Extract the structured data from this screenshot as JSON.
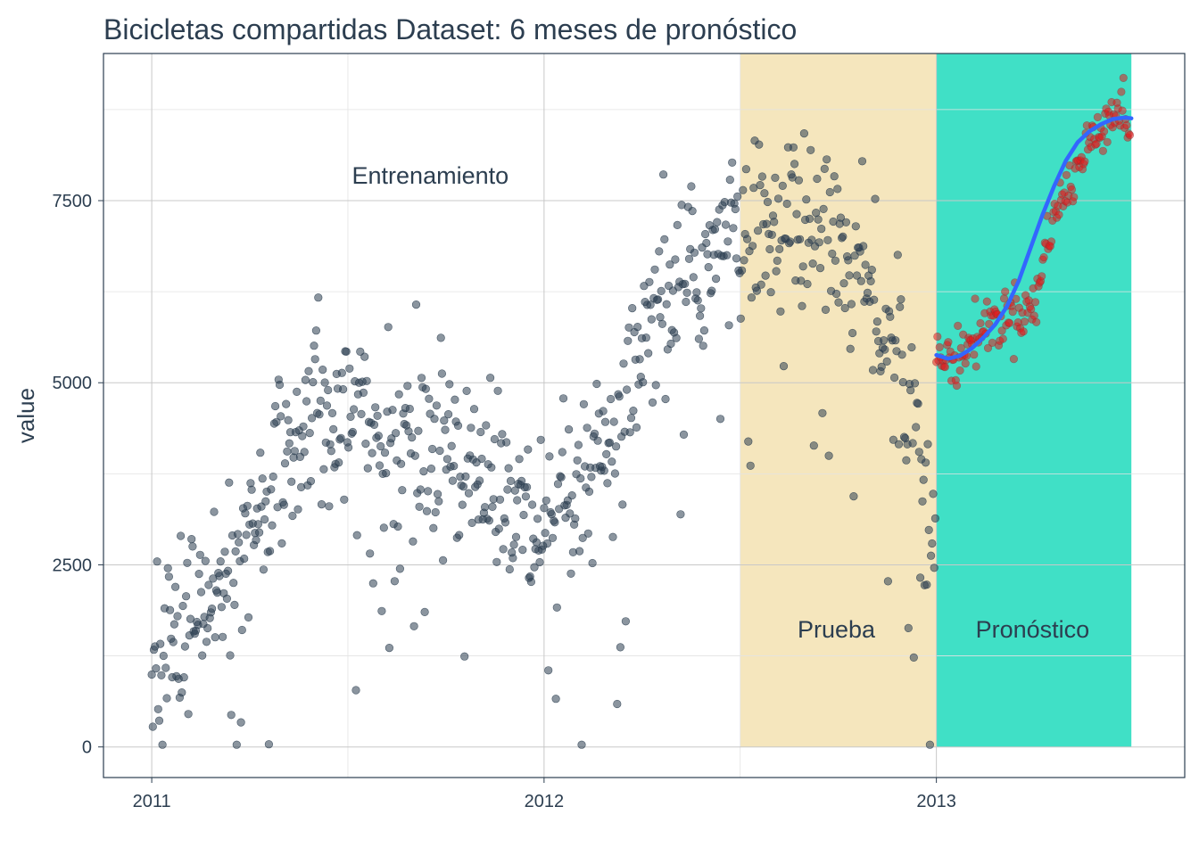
{
  "chart_data": {
    "type": "scatter",
    "title": "Bicicletas compartidas Dataset: 6 meses de pronóstico",
    "xlabel": "",
    "ylabel": "value",
    "xlim": [
      2010.877,
      2013.633
    ],
    "ylim": [
      -420,
      9520
    ],
    "x_ticks": [
      2011,
      2012,
      2013
    ],
    "x_tick_labels": [
      "2011",
      "2012",
      "2013"
    ],
    "y_ticks": [
      0,
      2500,
      5000,
      7500
    ],
    "y_tick_labels": [
      "0",
      "2500",
      "5000",
      "7500"
    ],
    "grid": true,
    "regions": [
      {
        "name": "test-region",
        "label": "Prueba",
        "x_start": 2012.5,
        "x_end": 2013.0,
        "color": "#f5e6bd"
      },
      {
        "name": "forecast-region",
        "label": "Pronóstico",
        "x_start": 2013.0,
        "x_end": 2013.497,
        "color": "#40e0c6"
      }
    ],
    "annotations": [
      {
        "name": "train-label",
        "text": "Entrenamiento",
        "x": 2011.71,
        "y": 7730
      },
      {
        "name": "test-label",
        "text": "Prueba",
        "x": 2012.745,
        "y": 1500
      },
      {
        "name": "forecast-label",
        "text": "Pronóstico",
        "x": 2013.245,
        "y": 1500
      }
    ],
    "series": [
      {
        "name": "actual",
        "color": "#2c3e50",
        "opacity": 0.55,
        "trend": {
          "x": [
            2011.0,
            2011.08,
            2011.17,
            2011.25,
            2011.33,
            2011.42,
            2011.5,
            2011.58,
            2011.67,
            2011.75,
            2011.83,
            2011.92,
            2012.0,
            2012.08,
            2012.17,
            2012.25,
            2012.33,
            2012.42,
            2012.5,
            2012.58,
            2012.67,
            2012.75,
            2012.83,
            2012.92,
            2012.998
          ],
          "y": [
            1200,
            1500,
            2100,
            2800,
            4100,
            4750,
            4600,
            4300,
            4250,
            4300,
            3800,
            3300,
            2700,
            3300,
            4000,
            5300,
            6300,
            6700,
            7000,
            7200,
            7150,
            7000,
            6200,
            5000,
            2700
          ]
        }
      },
      {
        "name": "forecast",
        "color": "#e31a1c",
        "opacity": 0.55,
        "trend": {
          "x": [
            2013.0,
            2013.04,
            2013.08,
            2013.12,
            2013.17,
            2013.21,
            2013.25,
            2013.29,
            2013.33,
            2013.37,
            2013.41,
            2013.45,
            2013.497
          ],
          "y": [
            5350,
            5300,
            5500,
            5750,
            5900,
            6000,
            6000,
            7200,
            7600,
            8050,
            8500,
            8750,
            8600
          ]
        }
      },
      {
        "name": "smooth",
        "type": "line",
        "color": "#3366ff",
        "x": [
          2013.0,
          2013.03,
          2013.06,
          2013.09,
          2013.12,
          2013.15,
          2013.18,
          2013.21,
          2013.24,
          2013.27,
          2013.3,
          2013.33,
          2013.36,
          2013.39,
          2013.42,
          2013.45,
          2013.48,
          2013.497
        ],
        "y": [
          5380,
          5330,
          5370,
          5470,
          5620,
          5800,
          6050,
          6400,
          6850,
          7300,
          7700,
          8050,
          8300,
          8450,
          8550,
          8620,
          8640,
          8630
        ]
      }
    ]
  }
}
